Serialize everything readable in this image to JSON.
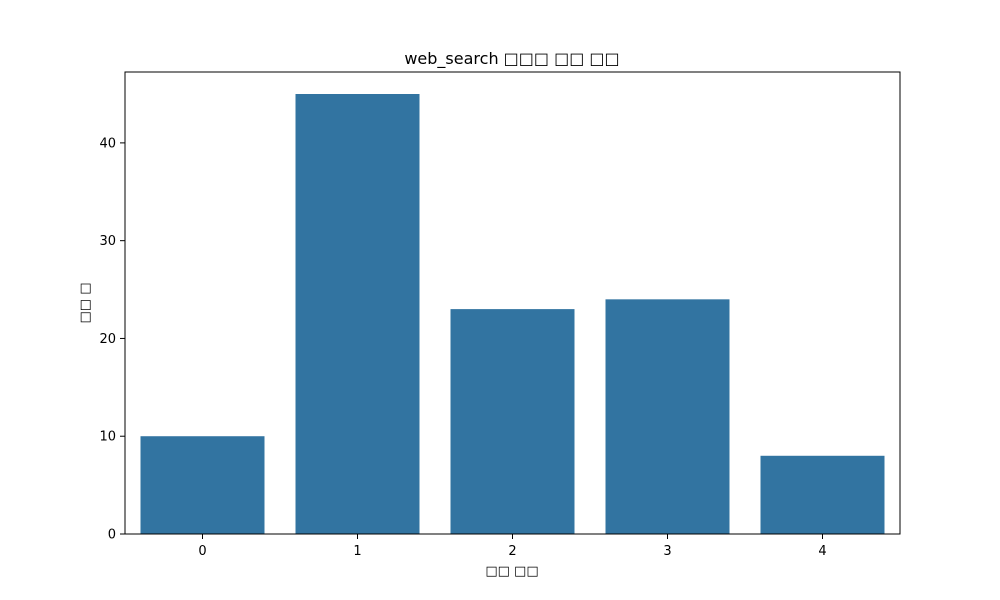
{
  "chart_data": {
    "type": "bar",
    "title": "web_search □□□ □□ □□",
    "xlabel": "□□ □□",
    "ylabel": "□□ □",
    "categories": [
      "0",
      "1",
      "2",
      "3",
      "4"
    ],
    "values": [
      10,
      45,
      23,
      24,
      8
    ],
    "ylim": [
      0,
      47.25
    ],
    "yticks": [
      0,
      10,
      20,
      30,
      40
    ],
    "grid": false,
    "legend": "none",
    "colors": {
      "bar": "#3274a1",
      "axes": "#000000",
      "background": "#ffffff"
    }
  }
}
